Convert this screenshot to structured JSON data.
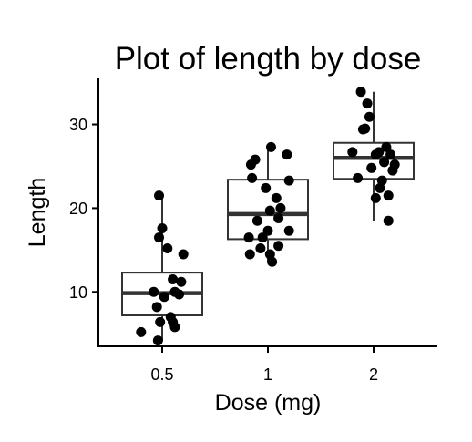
{
  "chart_data": {
    "type": "box",
    "title": "Plot of length  by dose",
    "xlabel": "Dose (mg)",
    "ylabel": "Length",
    "categories": [
      "0.5",
      "1",
      "2"
    ],
    "y_ticks": [
      10,
      20,
      30
    ],
    "ylim": [
      3.5,
      35.5
    ],
    "grid": false,
    "legend": "none",
    "colors": {
      "box_fill": "#ffffff",
      "box_line": "#333333",
      "median_line": "#333333",
      "points": "#000000",
      "axis": "#000000"
    },
    "boxes": [
      {
        "category": "0.5",
        "min": 4.2,
        "q1": 7.2,
        "median": 9.85,
        "q3": 12.3,
        "max": 21.5
      },
      {
        "category": "1",
        "min": 13.6,
        "q1": 16.3,
        "median": 19.3,
        "q3": 23.4,
        "max": 27.3
      },
      {
        "category": "2",
        "min": 18.5,
        "q1": 23.5,
        "median": 26.0,
        "q3": 27.8,
        "max": 33.9
      }
    ],
    "points": [
      [
        {
          "jitter": -0.03,
          "y": 21.5
        },
        {
          "jitter": 0.0,
          "y": 17.6
        },
        {
          "jitter": -0.03,
          "y": 16.5
        },
        {
          "jitter": 0.05,
          "y": 15.2
        },
        {
          "jitter": 0.2,
          "y": 14.5
        },
        {
          "jitter": 0.1,
          "y": 11.5
        },
        {
          "jitter": 0.18,
          "y": 11.2
        },
        {
          "jitter": 0.12,
          "y": 10.0
        },
        {
          "jitter": -0.08,
          "y": 10.0
        },
        {
          "jitter": 0.16,
          "y": 9.7
        },
        {
          "jitter": 0.02,
          "y": 9.4
        },
        {
          "jitter": -0.05,
          "y": 8.2
        },
        {
          "jitter": 0.08,
          "y": 7.0
        },
        {
          "jitter": 0.1,
          "y": 6.4
        },
        {
          "jitter": -0.02,
          "y": 6.4
        },
        {
          "jitter": 0.12,
          "y": 5.8
        },
        {
          "jitter": -0.2,
          "y": 5.2
        },
        {
          "jitter": -0.04,
          "y": 4.2
        }
      ],
      [
        {
          "jitter": 0.03,
          "y": 27.3
        },
        {
          "jitter": 0.18,
          "y": 26.4
        },
        {
          "jitter": -0.12,
          "y": 25.8
        },
        {
          "jitter": -0.16,
          "y": 25.2
        },
        {
          "jitter": -0.15,
          "y": 23.6
        },
        {
          "jitter": 0.2,
          "y": 23.3
        },
        {
          "jitter": -0.02,
          "y": 22.4
        },
        {
          "jitter": 0.08,
          "y": 21.2
        },
        {
          "jitter": 0.12,
          "y": 20.0
        },
        {
          "jitter": 0.02,
          "y": 19.7
        },
        {
          "jitter": 0.1,
          "y": 18.8
        },
        {
          "jitter": -0.1,
          "y": 18.5
        },
        {
          "jitter": 0.0,
          "y": 17.3
        },
        {
          "jitter": 0.2,
          "y": 17.3
        },
        {
          "jitter": -0.18,
          "y": 16.5
        },
        {
          "jitter": -0.05,
          "y": 16.5
        },
        {
          "jitter": 0.1,
          "y": 15.5
        },
        {
          "jitter": -0.07,
          "y": 15.2
        },
        {
          "jitter": -0.17,
          "y": 14.5
        },
        {
          "jitter": 0.02,
          "y": 14.5
        },
        {
          "jitter": 0.04,
          "y": 13.6
        }
      ],
      [
        {
          "jitter": -0.12,
          "y": 33.9
        },
        {
          "jitter": -0.06,
          "y": 32.5
        },
        {
          "jitter": -0.04,
          "y": 30.9
        },
        {
          "jitter": -0.08,
          "y": 29.5
        },
        {
          "jitter": -0.1,
          "y": 29.4
        },
        {
          "jitter": -0.2,
          "y": 26.7
        },
        {
          "jitter": 0.12,
          "y": 27.3
        },
        {
          "jitter": 0.05,
          "y": 26.7
        },
        {
          "jitter": 0.16,
          "y": 26.4
        },
        {
          "jitter": 0.02,
          "y": 26.4
        },
        {
          "jitter": 0.1,
          "y": 25.5
        },
        {
          "jitter": 0.2,
          "y": 25.2
        },
        {
          "jitter": -0.02,
          "y": 24.8
        },
        {
          "jitter": 0.18,
          "y": 24.5
        },
        {
          "jitter": -0.15,
          "y": 23.6
        },
        {
          "jitter": 0.08,
          "y": 23.3
        },
        {
          "jitter": 0.06,
          "y": 22.4
        },
        {
          "jitter": 0.14,
          "y": 21.5
        },
        {
          "jitter": 0.02,
          "y": 21.2
        },
        {
          "jitter": 0.14,
          "y": 18.5
        }
      ]
    ]
  }
}
